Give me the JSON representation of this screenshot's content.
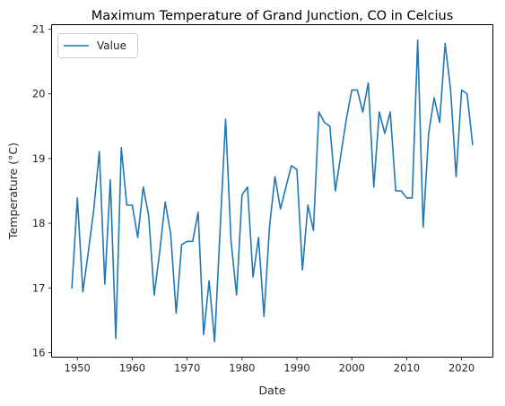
{
  "chart_data": {
    "type": "line",
    "title": "Maximum Temperature of Grand Junction, CO in Celcius",
    "xlabel": "Date",
    "ylabel": "Temperature (°C)",
    "xlim": [
      1945.3,
      2025.7
    ],
    "ylim": [
      15.93,
      21.07
    ],
    "xticks": [
      1950,
      1960,
      1970,
      1980,
      1990,
      2000,
      2010,
      2020
    ],
    "yticks": [
      16,
      17,
      18,
      19,
      20,
      21
    ],
    "grid": false,
    "legend_position": "top-left",
    "series": [
      {
        "name": "Value",
        "color": "#1f77b4",
        "x": [
          1949,
          1950,
          1951,
          1952,
          1953,
          1954,
          1955,
          1956,
          1957,
          1958,
          1959,
          1960,
          1961,
          1962,
          1963,
          1964,
          1965,
          1966,
          1967,
          1968,
          1969,
          1970,
          1971,
          1972,
          1973,
          1974,
          1975,
          1976,
          1977,
          1978,
          1979,
          1980,
          1981,
          1982,
          1983,
          1984,
          1985,
          1986,
          1987,
          1988,
          1989,
          1990,
          1991,
          1992,
          1993,
          1994,
          1995,
          1996,
          1997,
          1998,
          1999,
          2000,
          2001,
          2002,
          2003,
          2004,
          2005,
          2006,
          2007,
          2008,
          2009,
          2010,
          2011,
          2012,
          2013,
          2014,
          2015,
          2016,
          2017,
          2018,
          2019,
          2020,
          2021,
          2022
        ],
        "y": [
          17.0,
          18.39,
          16.94,
          17.56,
          18.22,
          19.11,
          17.06,
          18.67,
          16.22,
          19.17,
          18.28,
          18.28,
          17.78,
          18.56,
          18.11,
          16.89,
          17.56,
          18.33,
          17.83,
          16.61,
          17.67,
          17.72,
          17.72,
          18.17,
          16.28,
          17.11,
          16.17,
          17.89,
          19.61,
          17.72,
          16.89,
          18.44,
          18.56,
          17.17,
          17.78,
          16.56,
          17.94,
          18.72,
          18.22,
          18.56,
          18.89,
          18.83,
          17.28,
          18.28,
          17.89,
          19.72,
          19.56,
          19.5,
          18.5,
          19.06,
          19.61,
          20.06,
          20.06,
          19.72,
          20.17,
          18.56,
          19.72,
          19.39,
          19.72,
          18.5,
          18.5,
          18.39,
          18.39,
          20.83,
          17.94,
          19.39,
          19.94,
          19.56,
          20.78,
          20.06,
          18.72,
          20.06,
          20.0,
          19.22
        ]
      }
    ]
  }
}
